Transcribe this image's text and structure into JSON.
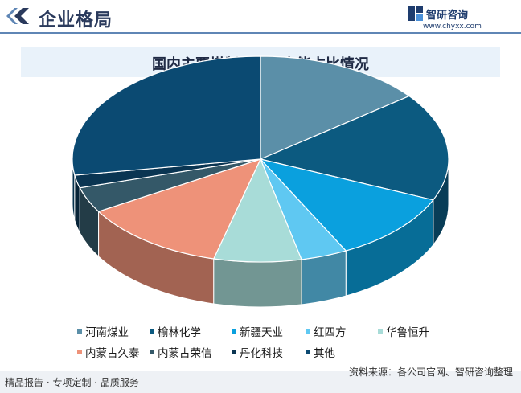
{
  "header": {
    "title": "企业格局",
    "brand_name": "智研咨询",
    "brand_url": "www.chyxx.com"
  },
  "colors": {
    "accent": "#5f86b5",
    "title_bar_bg": "#e9f2fa"
  },
  "chart_data": {
    "type": "pie",
    "title": "国内主要煤制乙二醇产能占比情况",
    "series": [
      {
        "name": "河南煤业",
        "value": 14.5,
        "color": "#5b8fa8"
      },
      {
        "name": "榆林化学",
        "value": 17.0,
        "color": "#0c5a80"
      },
      {
        "name": "新疆天业",
        "value": 11.0,
        "color": "#0aa0de"
      },
      {
        "name": "红四方",
        "value": 4.0,
        "color": "#5fc8f2"
      },
      {
        "name": "华鲁恒升",
        "value": 7.5,
        "color": "#a8dcd8"
      },
      {
        "name": "内蒙古久泰",
        "value": 12.5,
        "color": "#ee9279"
      },
      {
        "name": "内蒙古荣信",
        "value": 4.0,
        "color": "#345868"
      },
      {
        "name": "丹化科技",
        "value": 2.0,
        "color": "#0a3552"
      },
      {
        "name": "其他",
        "value": 27.5,
        "color": "#0b4a72"
      }
    ],
    "legend_position": "bottom"
  },
  "footer": {
    "left_text": "精品报告 · 专项定制 · 品质服务",
    "source_text": "资料来源：各公司官网、智研咨询整理"
  }
}
